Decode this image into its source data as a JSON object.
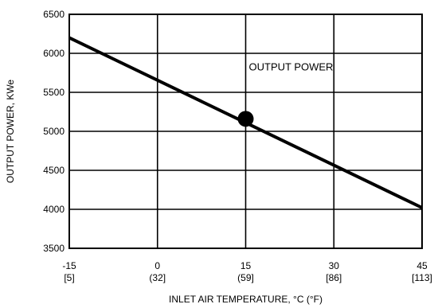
{
  "chart_data": {
    "type": "line",
    "title": "",
    "xlabel": "INLET AIR TEMPERATURE, °C (°F)",
    "ylabel": "OUTPUT POWER, KWe",
    "xlim": [
      -15,
      45
    ],
    "ylim": [
      3500,
      6500
    ],
    "xticks": [
      {
        "value": -15,
        "label": "-15",
        "sublabel": "[5]"
      },
      {
        "value": 0,
        "label": "0",
        "sublabel": "(32]"
      },
      {
        "value": 15,
        "label": "15",
        "sublabel": "(59]"
      },
      {
        "value": 30,
        "label": "30",
        "sublabel": "[86]"
      },
      {
        "value": 45,
        "label": "45",
        "sublabel": "[113]"
      }
    ],
    "yticks": [
      3500,
      4000,
      4500,
      5000,
      5500,
      6000,
      6500
    ],
    "grid": true,
    "series": [
      {
        "name": "OUTPUT POWER",
        "x": [
          -15,
          45
        ],
        "y": [
          6200,
          4020
        ]
      }
    ],
    "marker": {
      "x": 15,
      "y": 5160
    },
    "annotations": [
      {
        "text": "OUTPUT POWER",
        "x": 15,
        "y": 5700
      }
    ],
    "colors": {
      "line": "#000000",
      "grid": "#000000",
      "background": "#ffffff"
    }
  }
}
